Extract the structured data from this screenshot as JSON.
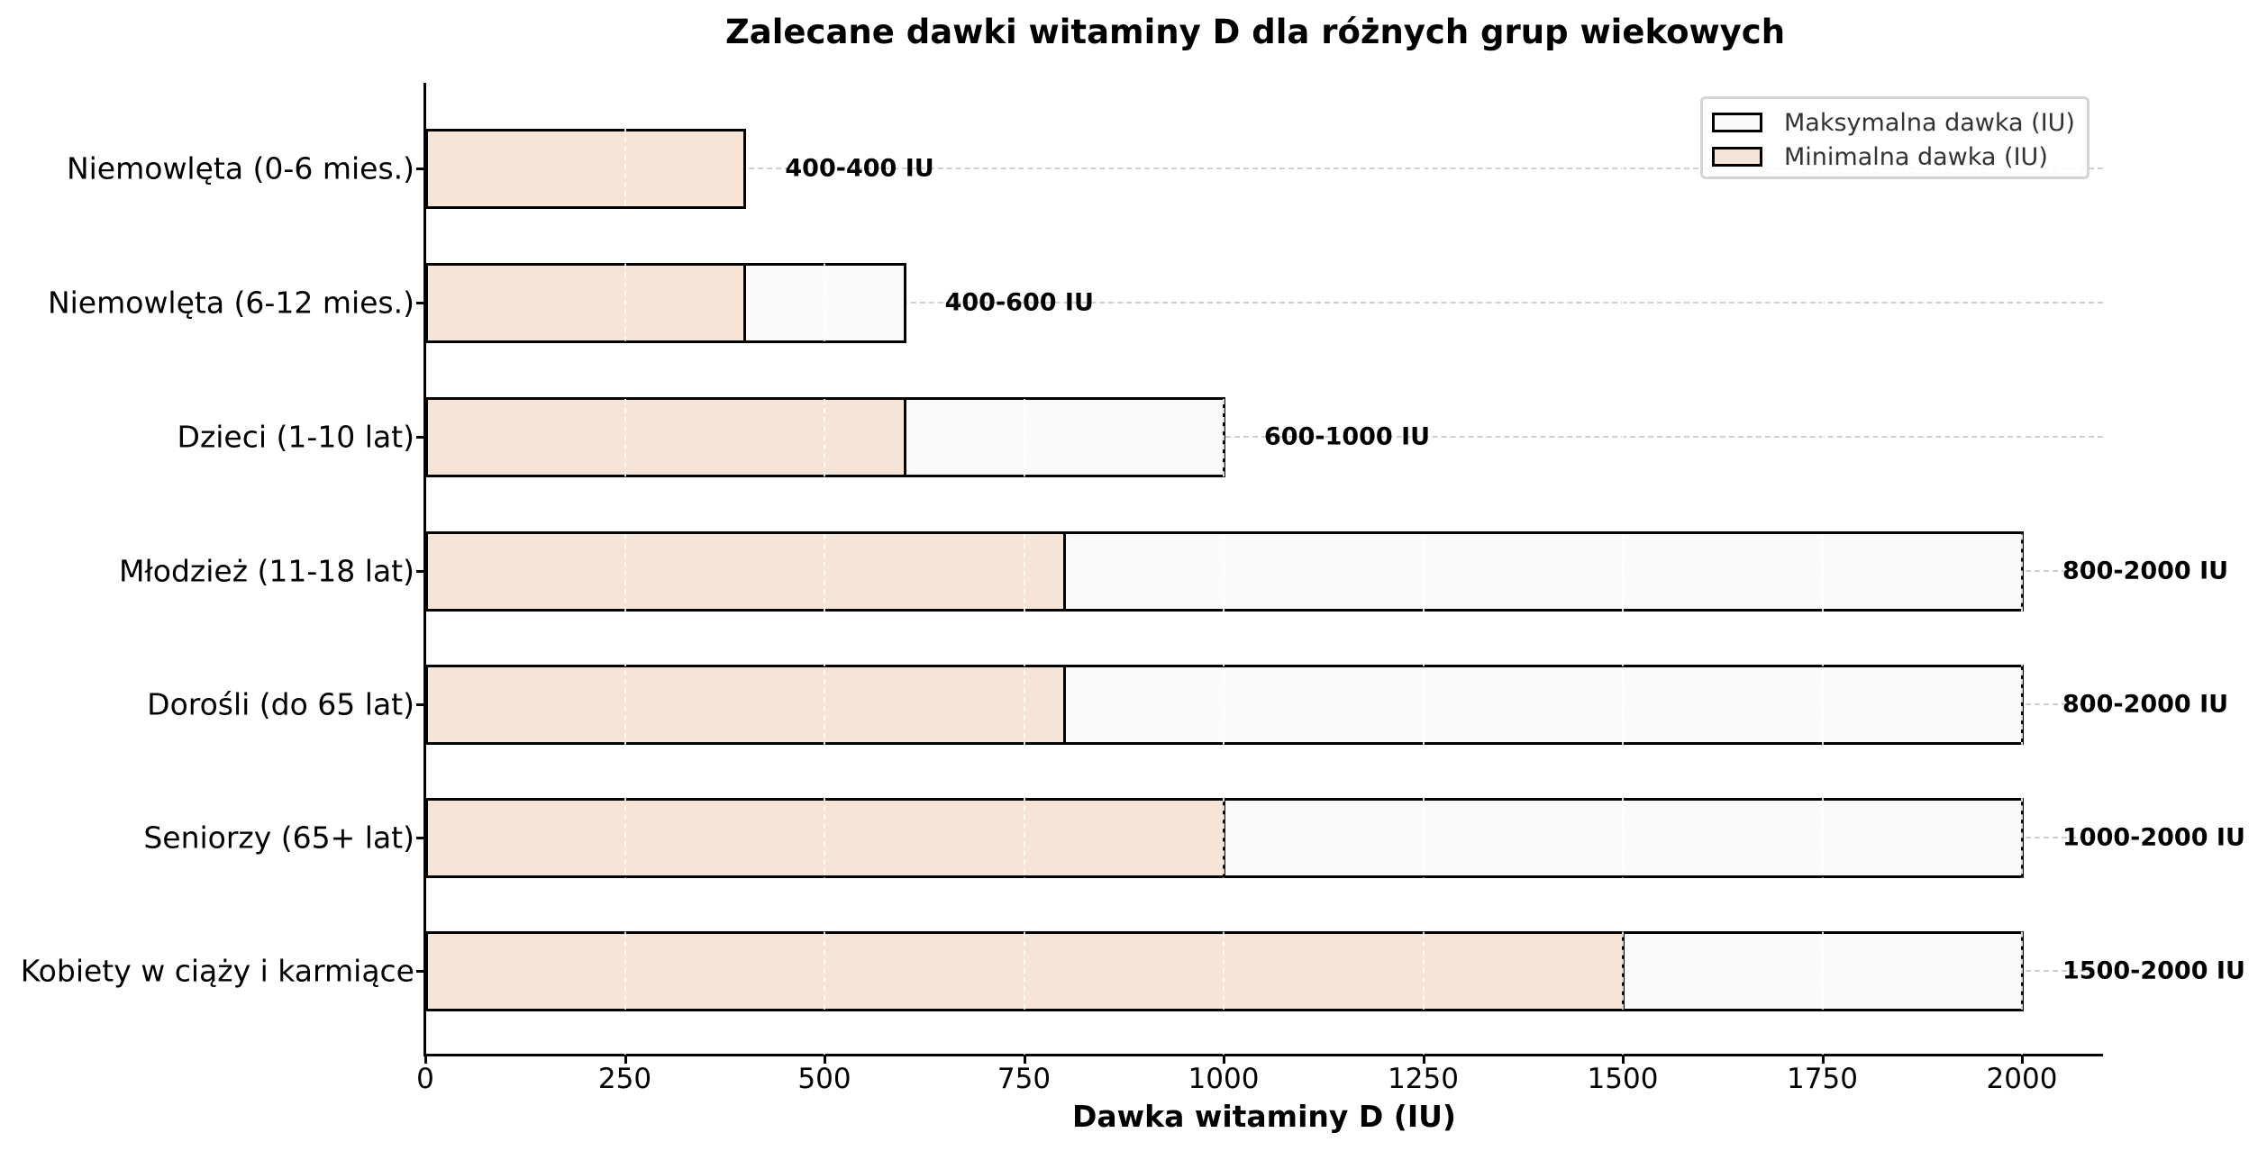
{
  "chart_data": {
    "type": "bar",
    "orientation": "horizontal",
    "stacked_overlay": true,
    "title": "Zalecane dawki witaminy D dla różnych grup wiekowych",
    "xlabel": "Dawka witaminy D (IU)",
    "ylabel": "",
    "xlim": [
      0,
      2100
    ],
    "xticks": [
      0,
      250,
      500,
      750,
      1000,
      1250,
      1500,
      1750,
      2000
    ],
    "categories": [
      "Niemowlęta (0-6 mies.)",
      "Niemowlęta (6-12 mies.)",
      "Dzieci (1-10 lat)",
      "Młodzież (11-18 lat)",
      "Dorośli (do 65 lat)",
      "Seniorzy (65+ lat)",
      "Kobiety w ciąży i karmiące"
    ],
    "series": [
      {
        "name": "Maksymalna dawka (IU)",
        "color": "#fafafa",
        "values": [
          400,
          600,
          1000,
          2000,
          2000,
          2000,
          2000
        ]
      },
      {
        "name": "Minimalna dawka (IU)",
        "color": "#f6e4d6",
        "values": [
          400,
          400,
          600,
          800,
          800,
          1000,
          1500
        ]
      }
    ],
    "annotations": [
      "400-400 IU",
      "400-600 IU",
      "600-1000 IU",
      "800-2000 IU",
      "800-2000 IU",
      "1000-2000 IU",
      "1500-2000 IU"
    ],
    "legend": {
      "position": "upper right",
      "entries": [
        "Maksymalna dawka (IU)",
        "Minimalna dawka (IU)"
      ]
    },
    "grid": {
      "x": true,
      "y": true,
      "style": "dashed"
    }
  }
}
